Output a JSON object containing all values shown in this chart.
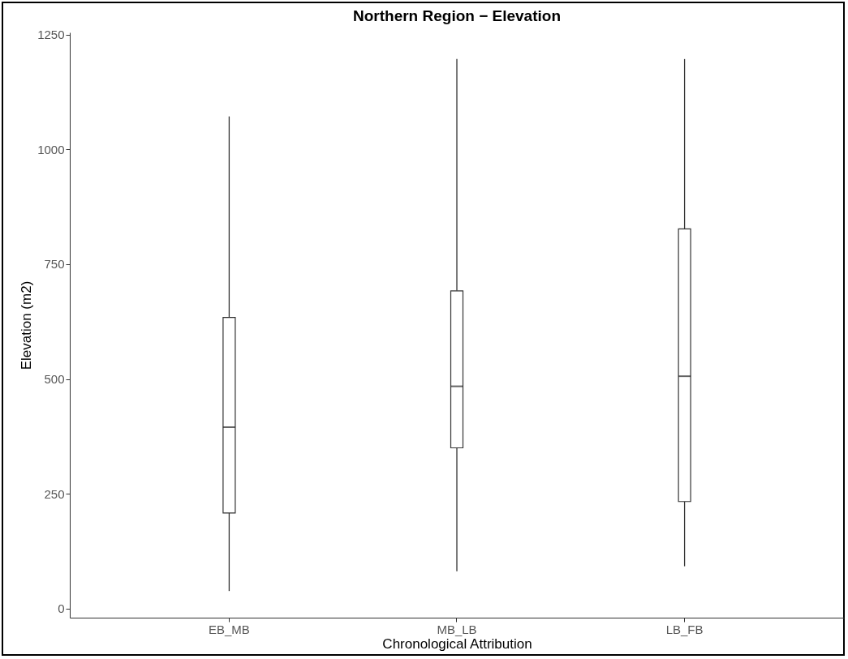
{
  "chart_data": {
    "type": "box",
    "title": "Northern Region − Elevation",
    "xlabel": "Chronological Attribution",
    "ylabel": "Elevation (m2)",
    "categories": [
      "EB_MB",
      "MB_LB",
      "LB_FB"
    ],
    "boxes": [
      {
        "low": 38,
        "q1": 208,
        "median": 395,
        "q3": 634,
        "high": 1072
      },
      {
        "low": 81,
        "q1": 350,
        "median": 484,
        "q3": 692,
        "high": 1197
      },
      {
        "low": 92,
        "q1": 233,
        "median": 506,
        "q3": 827,
        "high": 1197
      }
    ],
    "ylim": [
      -20,
      1255
    ],
    "yticks": [
      0,
      250,
      500,
      750,
      1000,
      1250
    ],
    "grid": false
  }
}
